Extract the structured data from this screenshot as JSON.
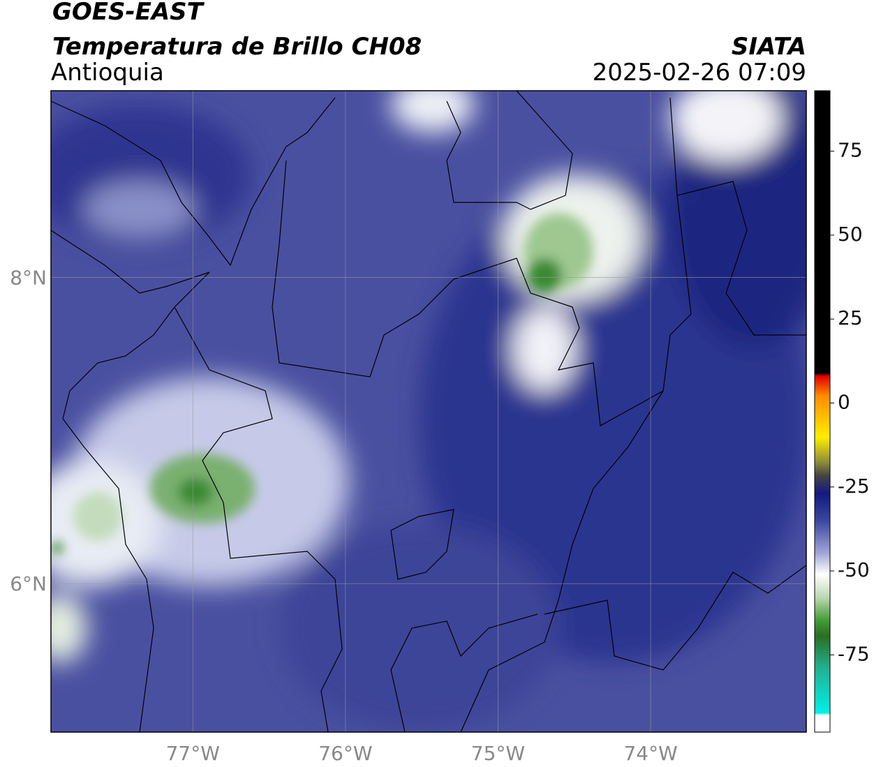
{
  "header": {
    "title": "GOES-EAST",
    "subtitle": "Temperatura de Brillo CH08",
    "region": "Antioquia",
    "source": "SIATA",
    "datetime": "2025-02-26 07:09"
  },
  "map": {
    "xlim": [
      -77.93,
      -72.98
    ],
    "ylim": [
      5.03,
      9.22
    ],
    "xticks": [
      {
        "value": -77,
        "label": "77°W"
      },
      {
        "value": -76,
        "label": "76°W"
      },
      {
        "value": -75,
        "label": "75°W"
      },
      {
        "value": -74,
        "label": "74°W"
      }
    ],
    "yticks": [
      {
        "value": 6,
        "label": "6°N"
      },
      {
        "value": 8,
        "label": "8°N"
      }
    ],
    "grid": true
  },
  "colorbar": {
    "lim": [
      -98,
      93
    ],
    "ticks": [
      75,
      50,
      25,
      0,
      -25,
      -50,
      -75
    ]
  }
}
